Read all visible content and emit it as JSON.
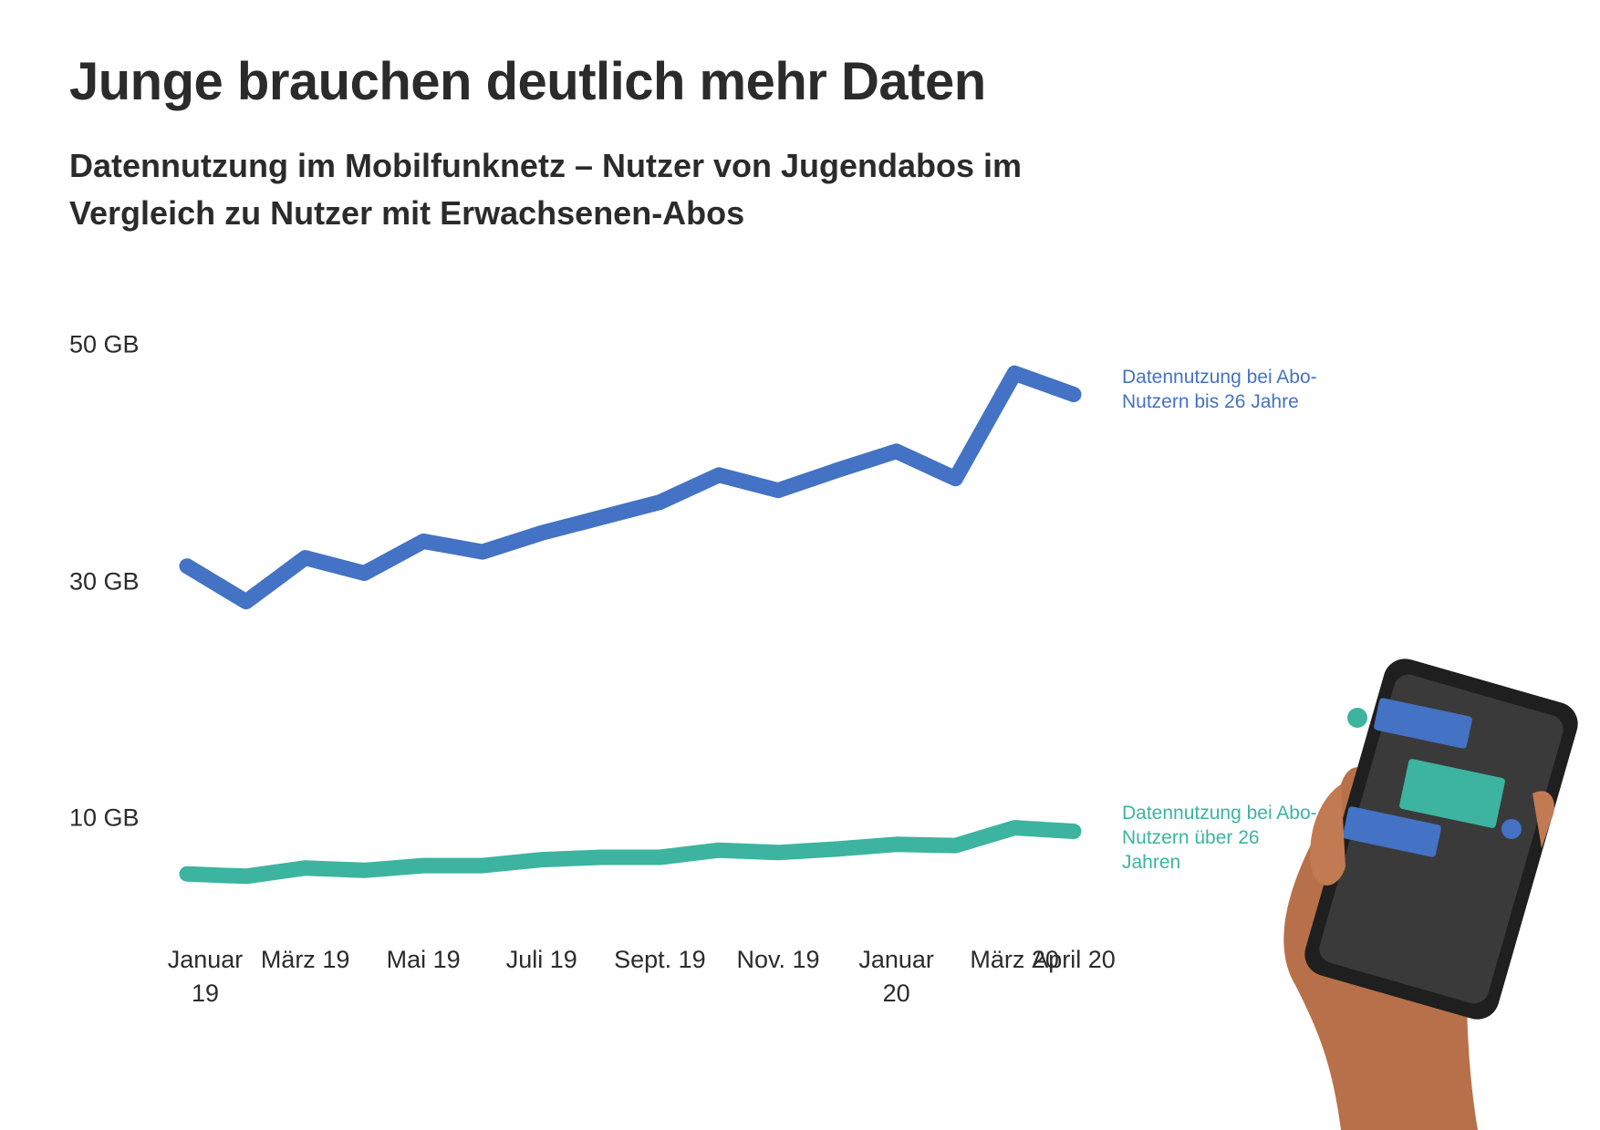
{
  "chart_data": {
    "type": "line",
    "title": "Junge brauchen deutlich mehr Daten",
    "subtitle": "Datennutzung im Mobilfunknetz – Nutzer von Jugendabos im Vergleich zu Nutzer mit Erwachsenen-Abos",
    "categories": [
      "Januar 19",
      null,
      "März 19",
      null,
      "Mai 19",
      null,
      "Juli 19",
      null,
      "Sept. 19",
      null,
      "Nov. 19",
      null,
      "Januar 20",
      null,
      "März 20",
      "April 20"
    ],
    "series": [
      {
        "name": "Datennutzung bei Abo-Nutzern bis 26 Jahre",
        "color": "#4472c4",
        "values": [
          31.3,
          28.3,
          32.0,
          30.7,
          33.4,
          32.5,
          34.1,
          35.4,
          36.7,
          39.0,
          37.7,
          39.4,
          41.0,
          38.7,
          47.6,
          45.8
        ]
      },
      {
        "name": "Datennutzung bei Abo-Nutzern über 26 Jahren",
        "color": "#3cb4a0",
        "values": [
          5.3,
          5.1,
          5.8,
          5.6,
          6.0,
          6.0,
          6.5,
          6.7,
          6.7,
          7.3,
          7.1,
          7.4,
          7.8,
          7.7,
          9.2,
          8.9
        ]
      }
    ],
    "ylim": [
      0,
      55
    ],
    "yticks": [
      {
        "value": 10,
        "label": "10 GB"
      },
      {
        "value": 30,
        "label": "30 GB"
      },
      {
        "value": 50,
        "label": "50 GB"
      }
    ],
    "grid": false
  }
}
